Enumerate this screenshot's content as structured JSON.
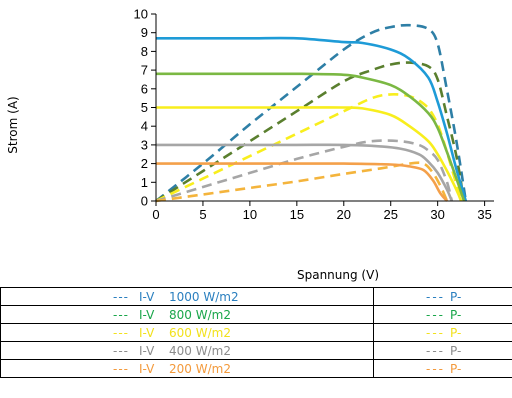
{
  "chart_data": {
    "type": "line",
    "title": "",
    "xlabel": "Spannung (V)",
    "ylabel": "Strom (A)",
    "xlim": [
      0,
      36
    ],
    "ylim": [
      0,
      10
    ],
    "xticks": [
      "0",
      "5",
      "10",
      "15",
      "20",
      "25",
      "30",
      "35"
    ],
    "yticks": [
      "0",
      "1",
      "2",
      "3",
      "4",
      "5",
      "6",
      "7",
      "8",
      "9",
      "10"
    ],
    "grid": false,
    "series": [
      {
        "name": "1000 W/m2",
        "kind": "I-V",
        "color": "#1e9bd7",
        "style": "solid",
        "x": [
          0,
          5,
          10,
          15,
          20,
          22,
          25,
          27,
          29,
          30,
          31,
          32,
          33
        ],
        "y": [
          8.7,
          8.7,
          8.7,
          8.7,
          8.5,
          8.45,
          8.1,
          7.6,
          6.6,
          5.3,
          3.6,
          1.7,
          0
        ]
      },
      {
        "name": "800 W/m2",
        "kind": "I-V",
        "color": "#7bb843",
        "style": "solid",
        "x": [
          0,
          5,
          10,
          15,
          20,
          22,
          25,
          27,
          29,
          30,
          31,
          32,
          32.8
        ],
        "y": [
          6.8,
          6.8,
          6.8,
          6.8,
          6.75,
          6.6,
          6.2,
          5.6,
          4.7,
          3.9,
          2.6,
          1.2,
          0
        ]
      },
      {
        "name": "600 W/m2",
        "kind": "I-V",
        "color": "#f8ee1d",
        "style": "solid",
        "x": [
          0,
          5,
          10,
          15,
          20,
          22,
          25,
          27,
          29,
          30,
          31,
          32,
          32.5
        ],
        "y": [
          5.0,
          5.0,
          5.0,
          5.0,
          5.0,
          4.95,
          4.6,
          4.0,
          3.2,
          2.5,
          1.6,
          0.6,
          0
        ]
      },
      {
        "name": "400 W/m2",
        "kind": "I-V",
        "color": "#a6a6a6",
        "style": "solid",
        "x": [
          0,
          5,
          10,
          15,
          20,
          23,
          26,
          28,
          29,
          30,
          31,
          31.5
        ],
        "y": [
          3.0,
          3.0,
          3.0,
          3.0,
          3.0,
          2.95,
          2.8,
          2.5,
          2.1,
          1.5,
          0.6,
          0
        ]
      },
      {
        "name": "200 W/m2",
        "kind": "I-V",
        "color": "#f4a04a",
        "style": "solid",
        "x": [
          0,
          5,
          10,
          15,
          20,
          25,
          27,
          28.5,
          29.5,
          30.3,
          31
        ],
        "y": [
          2.0,
          2.0,
          2.0,
          2.0,
          2.0,
          1.95,
          1.85,
          1.65,
          1.1,
          0.4,
          0
        ]
      },
      {
        "name": "1000 W/m2",
        "kind": "P-V",
        "color": "#2e7fa6",
        "style": "dashed",
        "x": [
          0,
          5,
          10,
          15,
          20,
          23,
          25,
          27,
          29,
          30,
          31,
          32,
          33
        ],
        "y": [
          0,
          2.0,
          4.1,
          6.1,
          8.1,
          9.0,
          9.3,
          9.4,
          9.2,
          8.4,
          5.9,
          3.2,
          0
        ]
      },
      {
        "name": "800 W/m2",
        "kind": "P-V",
        "color": "#5a7f2e",
        "style": "dashed",
        "x": [
          0,
          5,
          10,
          15,
          20,
          23,
          25,
          27,
          29,
          30,
          31,
          32,
          32.8
        ],
        "y": [
          0,
          1.6,
          3.2,
          4.8,
          6.4,
          7.0,
          7.3,
          7.4,
          7.2,
          6.5,
          4.5,
          2.4,
          0
        ]
      },
      {
        "name": "600 W/m2",
        "kind": "P-V",
        "color": "#f8ee1d",
        "style": "dashed",
        "x": [
          0,
          5,
          10,
          15,
          20,
          23,
          25,
          27,
          28.5,
          29.5,
          30.5,
          32.5
        ],
        "y": [
          0,
          1.2,
          2.4,
          3.6,
          4.8,
          5.5,
          5.7,
          5.6,
          5.2,
          4.6,
          3.4,
          0
        ]
      },
      {
        "name": "400 W/m2",
        "kind": "P-V",
        "color": "#a6a6a6",
        "style": "dashed",
        "x": [
          0,
          5,
          10,
          15,
          20,
          23,
          26,
          28,
          29,
          30,
          31,
          31.5
        ],
        "y": [
          0,
          0.75,
          1.5,
          2.25,
          2.9,
          3.2,
          3.2,
          3.0,
          2.7,
          2.2,
          1.0,
          0
        ]
      },
      {
        "name": "200 W/m2",
        "kind": "P-V",
        "color": "#f4b43c",
        "style": "dashed",
        "x": [
          0,
          5,
          10,
          15,
          20,
          24,
          27,
          28.5,
          29.5,
          30.3,
          31
        ],
        "y": [
          0,
          0.35,
          0.7,
          1.05,
          1.45,
          1.75,
          2.0,
          2.0,
          1.5,
          0.8,
          0
        ]
      }
    ]
  },
  "legend": {
    "iv_rows": [
      {
        "dash": "---",
        "kind": "I-V",
        "label": "1000 W/m2",
        "color": "#2a7fbf",
        "labelColor": "#2a7fbf"
      },
      {
        "dash": "---",
        "kind": "I-V",
        "label": "800 W/m2",
        "color": "#19a64a",
        "labelColor": "#19a64a"
      },
      {
        "dash": "---",
        "kind": "I-V",
        "label": "600 W/m2",
        "color": "#f2e11c",
        "labelColor": "#f2e11c"
      },
      {
        "dash": "---",
        "kind": "I-V",
        "label": "400 W/m2",
        "color": "#8c8c8c",
        "labelColor": "#8c8c8c"
      },
      {
        "dash": "---",
        "kind": "I-V",
        "label": "200 W/m2",
        "color": "#f39a3c",
        "labelColor": "#f39a3c"
      }
    ],
    "pv_rows": [
      {
        "dash": "---",
        "kind": "P-",
        "color": "#2a7fbf"
      },
      {
        "dash": "---",
        "kind": "P-",
        "color": "#19a64a"
      },
      {
        "dash": "---",
        "kind": "P-",
        "color": "#f2e11c"
      },
      {
        "dash": "---",
        "kind": "P-",
        "color": "#8c8c8c"
      },
      {
        "dash": "---",
        "kind": "P-",
        "color": "#f39a3c"
      }
    ]
  }
}
